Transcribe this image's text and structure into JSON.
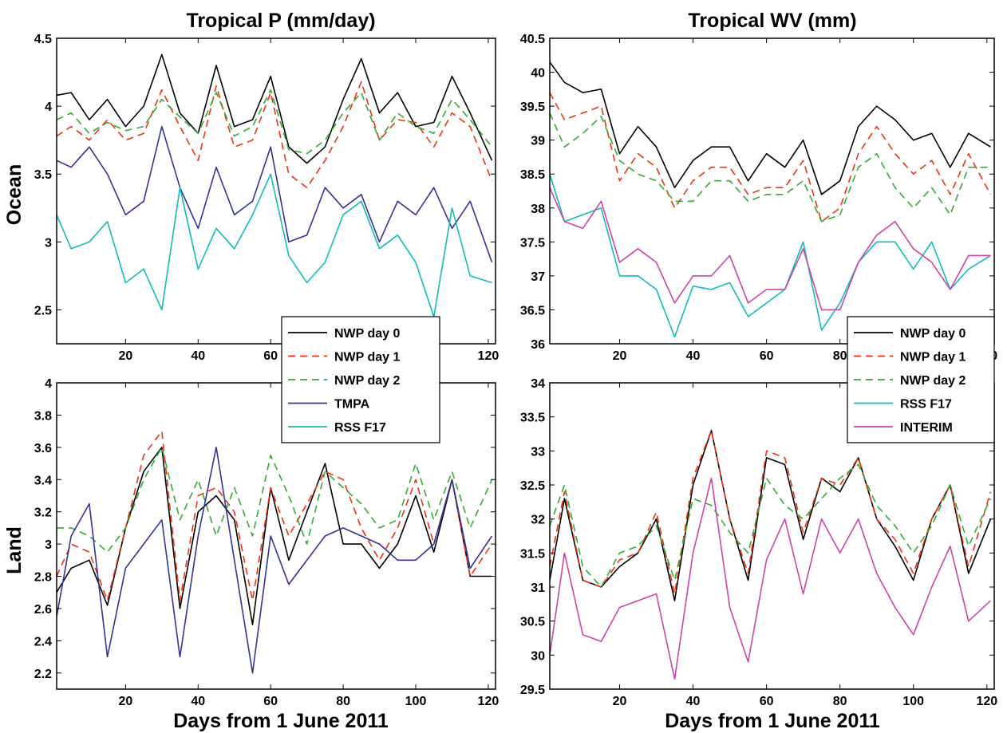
{
  "figure": {
    "col_titles": [
      "Tropical P (mm/day)",
      "Tropical WV (mm)"
    ],
    "row_labels": [
      "Ocean",
      "Land"
    ],
    "xlabel": "Days from 1 June 2011",
    "series_styles": {
      "NWP day 0": {
        "color": "#000000",
        "dash": ""
      },
      "NWP day 1": {
        "color": "#ee3311",
        "dash": "9,6"
      },
      "NWP day 2": {
        "color": "#33aa33",
        "dash": "9,6"
      },
      "TMPA": {
        "color": "#333399",
        "dash": ""
      },
      "RSS F17": {
        "color": "#11bbbb",
        "dash": ""
      },
      "INTERIM": {
        "color": "#cc44aa",
        "dash": ""
      }
    }
  },
  "legends": {
    "left": [
      "NWP day 0",
      "NWP day 1",
      "NWP day 2",
      "TMPA",
      "RSS F17"
    ],
    "right": [
      "NWP day 0",
      "NWP day 1",
      "NWP day 2",
      "RSS F17",
      "INTERIM"
    ]
  },
  "chart_data": [
    {
      "type": "line",
      "panel": "a",
      "title": "Tropical P (mm/day)",
      "row": "Ocean",
      "xlabel": "",
      "ylabel": "",
      "xlim": [
        1,
        122
      ],
      "ylim": [
        2.25,
        4.5
      ],
      "xticks": [
        20,
        40,
        60,
        80,
        100,
        120
      ],
      "yticks": [
        2.5,
        3,
        3.5,
        4,
        4.5
      ],
      "x": [
        1,
        5,
        10,
        15,
        20,
        25,
        30,
        35,
        40,
        45,
        50,
        55,
        60,
        65,
        70,
        75,
        80,
        85,
        90,
        95,
        100,
        105,
        110,
        115,
        121
      ],
      "series": [
        {
          "name": "NWP day 0",
          "values": [
            4.08,
            4.1,
            3.9,
            4.05,
            3.85,
            4.0,
            4.38,
            3.95,
            3.8,
            4.3,
            3.85,
            3.9,
            4.22,
            3.7,
            3.58,
            3.7,
            4.05,
            4.35,
            3.95,
            4.1,
            3.85,
            3.88,
            4.22,
            3.95,
            3.6
          ]
        },
        {
          "name": "NWP day 1",
          "values": [
            3.78,
            3.85,
            3.75,
            3.9,
            3.75,
            3.8,
            4.12,
            3.85,
            3.6,
            4.15,
            3.7,
            3.75,
            4.1,
            3.5,
            3.4,
            3.6,
            3.85,
            4.18,
            3.75,
            3.9,
            3.88,
            3.7,
            3.95,
            3.85,
            3.45
          ]
        },
        {
          "name": "NWP day 2",
          "values": [
            3.9,
            3.95,
            3.8,
            3.88,
            3.82,
            3.85,
            4.05,
            3.92,
            3.8,
            4.1,
            3.78,
            3.85,
            4.12,
            3.68,
            3.65,
            3.75,
            3.95,
            4.1,
            3.75,
            3.95,
            3.85,
            3.8,
            4.05,
            3.9,
            3.7
          ]
        },
        {
          "name": "TMPA",
          "values": [
            3.6,
            3.55,
            3.7,
            3.5,
            3.2,
            3.3,
            3.85,
            3.4,
            3.1,
            3.55,
            3.2,
            3.3,
            3.7,
            3.0,
            3.05,
            3.4,
            3.25,
            3.35,
            3.0,
            3.3,
            3.2,
            3.4,
            3.1,
            3.3,
            2.85
          ]
        },
        {
          "name": "RSS F17",
          "values": [
            3.2,
            2.95,
            3.0,
            3.15,
            2.7,
            2.8,
            2.5,
            3.4,
            2.8,
            3.1,
            2.95,
            3.2,
            3.5,
            2.9,
            2.7,
            2.85,
            3.2,
            3.3,
            2.95,
            3.05,
            2.85,
            2.45,
            3.25,
            2.75,
            2.7
          ]
        }
      ]
    },
    {
      "type": "line",
      "panel": "b",
      "title": "",
      "row": "Land",
      "xlabel": "Days from 1 June 2011",
      "ylabel": "",
      "xlim": [
        1,
        122
      ],
      "ylim": [
        2.1,
        4.0
      ],
      "xticks": [
        20,
        40,
        60,
        80,
        100,
        120
      ],
      "yticks": [
        2.2,
        2.4,
        2.6,
        2.8,
        3,
        3.2,
        3.4,
        3.6,
        3.8,
        4
      ],
      "x": [
        1,
        5,
        10,
        15,
        20,
        25,
        30,
        35,
        40,
        45,
        50,
        55,
        60,
        65,
        70,
        75,
        80,
        85,
        90,
        95,
        100,
        105,
        110,
        115,
        121
      ],
      "series": [
        {
          "name": "NWP day 0",
          "values": [
            2.7,
            2.85,
            2.9,
            2.62,
            3.1,
            3.45,
            3.6,
            2.6,
            3.2,
            3.3,
            3.15,
            2.5,
            3.35,
            2.9,
            3.2,
            3.5,
            3.0,
            3.0,
            2.85,
            3.0,
            3.3,
            2.95,
            3.4,
            2.8,
            2.8
          ]
        },
        {
          "name": "NWP day 1",
          "values": [
            2.8,
            3.0,
            2.95,
            2.65,
            3.1,
            3.55,
            3.7,
            2.65,
            3.3,
            3.35,
            3.2,
            2.65,
            3.35,
            3.05,
            3.25,
            3.45,
            3.4,
            3.1,
            2.9,
            3.1,
            3.4,
            3.0,
            3.4,
            2.8,
            3.0
          ]
        },
        {
          "name": "NWP day 2",
          "values": [
            3.1,
            3.1,
            3.05,
            2.95,
            3.1,
            3.4,
            3.6,
            3.15,
            3.4,
            3.05,
            3.35,
            3.05,
            3.55,
            3.3,
            3.0,
            3.45,
            3.35,
            3.25,
            3.1,
            3.15,
            3.5,
            3.15,
            3.45,
            3.1,
            3.4
          ]
        },
        {
          "name": "TMPA",
          "values": [
            2.55,
            3.05,
            3.25,
            2.3,
            2.85,
            3.0,
            3.15,
            2.3,
            3.05,
            3.6,
            2.9,
            2.2,
            3.05,
            2.75,
            2.9,
            3.05,
            3.1,
            3.05,
            3.0,
            2.9,
            2.9,
            3.0,
            3.4,
            2.85,
            3.05
          ]
        }
      ]
    },
    {
      "type": "line",
      "panel": "c",
      "title": "Tropical WV (mm)",
      "row": "Ocean",
      "xlabel": "",
      "ylabel": "",
      "xlim": [
        1,
        122
      ],
      "ylim": [
        36.0,
        40.5
      ],
      "xticks": [
        20,
        40,
        60,
        80,
        100,
        120
      ],
      "yticks": [
        36,
        36.5,
        37,
        37.5,
        38,
        38.5,
        39,
        39.5,
        40,
        40.5
      ],
      "x": [
        1,
        5,
        10,
        15,
        20,
        25,
        30,
        35,
        40,
        45,
        50,
        55,
        60,
        65,
        70,
        75,
        80,
        85,
        90,
        95,
        100,
        105,
        110,
        115,
        121
      ],
      "series": [
        {
          "name": "NWP day 0",
          "values": [
            40.15,
            39.85,
            39.7,
            39.75,
            38.8,
            39.2,
            38.9,
            38.3,
            38.7,
            38.9,
            38.9,
            38.4,
            38.8,
            38.6,
            39.0,
            38.2,
            38.4,
            39.2,
            39.5,
            39.3,
            39.0,
            39.1,
            38.6,
            39.1,
            38.9
          ]
        },
        {
          "name": "NWP day 1",
          "values": [
            39.7,
            39.3,
            39.4,
            39.5,
            38.4,
            38.8,
            38.6,
            38.0,
            38.4,
            38.6,
            38.6,
            38.2,
            38.3,
            38.3,
            38.7,
            37.8,
            38.0,
            38.8,
            39.2,
            38.8,
            38.5,
            38.7,
            38.2,
            38.8,
            38.2
          ]
        },
        {
          "name": "NWP day 2",
          "values": [
            39.4,
            38.9,
            39.1,
            39.35,
            38.7,
            38.5,
            38.4,
            38.1,
            38.1,
            38.4,
            38.4,
            38.1,
            38.2,
            38.2,
            38.4,
            37.8,
            37.9,
            38.6,
            38.8,
            38.3,
            38.0,
            38.3,
            37.9,
            38.6,
            38.6
          ]
        },
        {
          "name": "RSS F17",
          "values": [
            38.5,
            37.8,
            37.9,
            38.0,
            37.0,
            37.0,
            36.8,
            36.1,
            36.85,
            36.8,
            36.9,
            36.4,
            36.6,
            36.8,
            37.5,
            36.2,
            36.6,
            37.2,
            37.5,
            37.5,
            37.1,
            37.5,
            36.8,
            37.1,
            37.3
          ]
        },
        {
          "name": "INTERIM",
          "values": [
            38.3,
            37.8,
            37.7,
            38.1,
            37.2,
            37.4,
            37.2,
            36.6,
            37.0,
            37.0,
            37.3,
            36.6,
            36.8,
            36.8,
            37.4,
            36.5,
            36.5,
            37.2,
            37.6,
            37.8,
            37.4,
            37.2,
            36.8,
            37.3,
            37.3
          ]
        }
      ]
    },
    {
      "type": "line",
      "panel": "d",
      "title": "",
      "row": "Land",
      "xlabel": "Days from 1 June 2011",
      "ylabel": "",
      "xlim": [
        1,
        122
      ],
      "ylim": [
        29.5,
        34.0
      ],
      "xticks": [
        20,
        40,
        60,
        80,
        100,
        120
      ],
      "yticks": [
        29.5,
        30,
        30.5,
        31,
        31.5,
        32,
        32.5,
        33,
        33.5,
        34
      ],
      "x": [
        1,
        5,
        10,
        15,
        20,
        25,
        30,
        35,
        40,
        45,
        50,
        55,
        60,
        65,
        70,
        75,
        80,
        85,
        90,
        95,
        100,
        105,
        110,
        115,
        121
      ],
      "series": [
        {
          "name": "NWP day 0",
          "values": [
            31.1,
            32.3,
            31.1,
            31.0,
            31.3,
            31.5,
            32.0,
            30.8,
            32.5,
            33.3,
            32.0,
            31.1,
            32.9,
            32.8,
            31.7,
            32.6,
            32.4,
            32.9,
            32.0,
            31.6,
            31.1,
            32.0,
            32.5,
            31.2,
            32.0
          ]
        },
        {
          "name": "NWP day 1",
          "values": [
            31.3,
            32.4,
            31.1,
            31.0,
            31.4,
            31.5,
            32.1,
            30.9,
            32.6,
            33.3,
            32.0,
            31.2,
            33.0,
            32.9,
            31.8,
            32.6,
            32.5,
            32.9,
            32.0,
            31.7,
            31.2,
            32.0,
            32.5,
            31.3,
            32.4
          ]
        },
        {
          "name": "NWP day 2",
          "values": [
            31.9,
            32.5,
            31.3,
            31.0,
            31.5,
            31.6,
            31.9,
            31.1,
            32.3,
            32.2,
            31.8,
            31.5,
            32.6,
            32.2,
            32.0,
            32.3,
            32.6,
            32.8,
            32.2,
            31.9,
            31.5,
            31.9,
            32.5,
            31.6,
            32.3
          ]
        },
        {
          "name": "INTERIM",
          "values": [
            30.0,
            31.5,
            30.3,
            30.2,
            30.7,
            30.8,
            30.9,
            29.65,
            31.5,
            32.6,
            30.7,
            29.9,
            31.4,
            32.0,
            30.9,
            32.0,
            31.5,
            32.0,
            31.2,
            30.7,
            30.3,
            31.0,
            31.6,
            30.5,
            30.8
          ]
        }
      ]
    }
  ]
}
